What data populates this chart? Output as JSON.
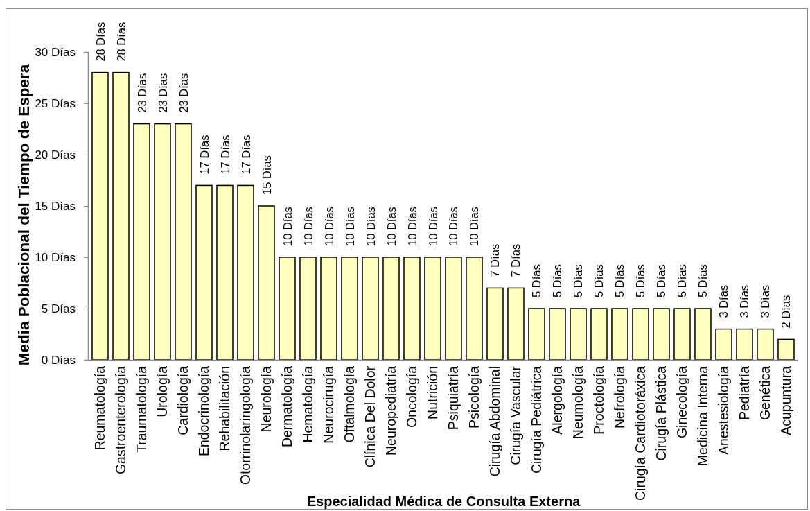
{
  "chart_data": {
    "type": "bar",
    "xlabel": "Especialidad Médica de Consulta Externa",
    "ylabel": "Media Poblacional del Tiempo de Espera",
    "categories": [
      "Reumatología",
      "Gastroenterología",
      "Traumatología",
      "Urología",
      "Cardiología",
      "Endocrinología",
      "Rehabilitación",
      "Otorrinolaringología",
      "Neurología",
      "Dermatología",
      "Hematología",
      "Neurocirugía",
      "Oftalmología",
      "Clínica Del Dolor",
      "Neuropediatría",
      "Oncología",
      "Nutrición",
      "Psiquiatría",
      "Psicología",
      "Cirugía Abdominal",
      "Cirugía Vascular",
      "Cirugía Pediátrica",
      "Alergología",
      "Neumología",
      "Proctología",
      "Nefrología",
      "Cirugía Cardiotoráxica",
      "Cirugía Plástica",
      "Ginecología",
      "Medicina Interna",
      "Anestesiología",
      "Pediatría",
      "Genética",
      "Acupuntura"
    ],
    "values": [
      28,
      28,
      23,
      23,
      23,
      17,
      17,
      17,
      15,
      10,
      10,
      10,
      10,
      10,
      10,
      10,
      10,
      10,
      10,
      7,
      7,
      5,
      5,
      5,
      5,
      5,
      5,
      5,
      5,
      5,
      3,
      3,
      3,
      2
    ],
    "value_labels": [
      "28 Días",
      "28 Días",
      "23 Días",
      "23 Días",
      "23 Días",
      "17 Días",
      "17 Días",
      "17 Días",
      "15 Días",
      "10 Días",
      "10 Días",
      "10 Días",
      "10 Días",
      "10 Días",
      "10 Días",
      "10 Días",
      "10 Días",
      "10 Días",
      "10 Días",
      "7 Días",
      "7 Días",
      "5 Días",
      "5 Días",
      "5 Días",
      "5 Días",
      "5 Días",
      "5 Días",
      "5 Días",
      "5 Días",
      "5 Días",
      "3 Días",
      "3 Días",
      "3 Días",
      "2 Días"
    ],
    "color": "#ffffc0",
    "ylim": [
      0,
      30
    ],
    "yticks": [
      {
        "value": 0,
        "label": "0 Días"
      },
      {
        "value": 5,
        "label": "5 Días"
      },
      {
        "value": 10,
        "label": "10 Días"
      },
      {
        "value": 15,
        "label": "15 Días"
      },
      {
        "value": 20,
        "label": "20 Días"
      },
      {
        "value": 25,
        "label": "25 Días"
      },
      {
        "value": 30,
        "label": "30 Días"
      }
    ],
    "grid": false
  }
}
